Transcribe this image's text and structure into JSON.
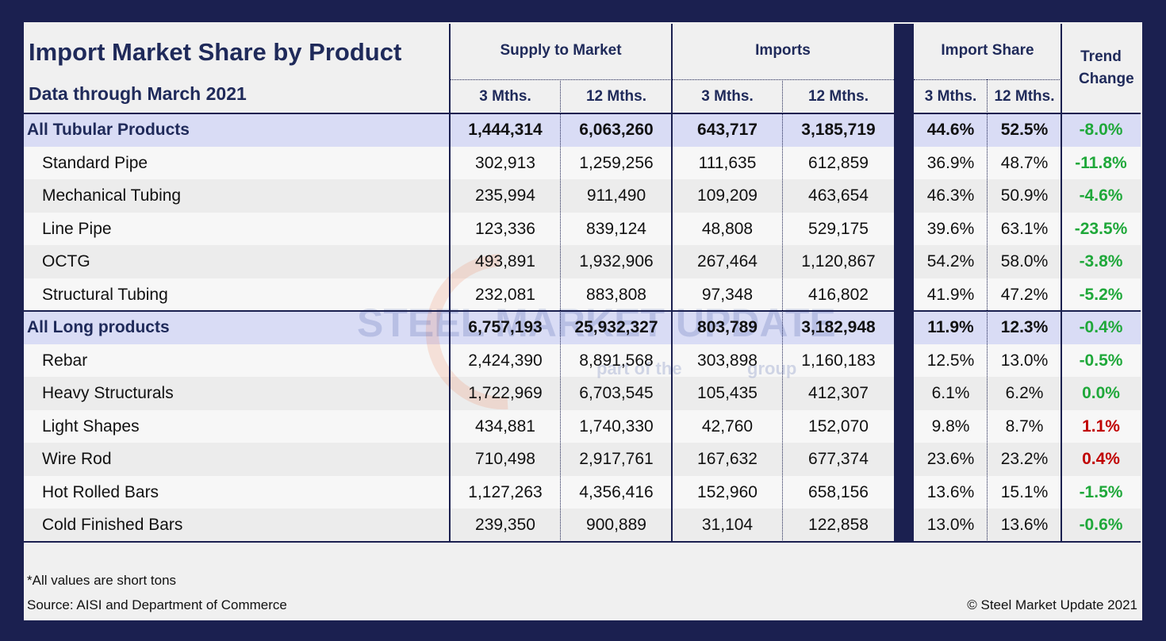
{
  "header": {
    "title": "Import Market Share by Product",
    "subtitle": "Data through March 2021"
  },
  "columns": {
    "groups": [
      "Supply to Market",
      "Imports",
      "Import Share",
      "Trend Change"
    ],
    "sub": [
      "3 Mths.",
      "12 Mths.",
      "3 Mths.",
      "12 Mths.",
      "3 Mths.",
      "12 Mths."
    ]
  },
  "table": {
    "rows": [
      {
        "label": "All Tubular Products",
        "summary": true,
        "trend_color": "#1fa83a",
        "cells": [
          "1,444,314",
          "6,063,260",
          "643,717",
          "3,185,719",
          "44.6%",
          "52.5%",
          "-8.0%"
        ]
      },
      {
        "label": "Standard Pipe",
        "summary": false,
        "trend_color": "#1fa83a",
        "cells": [
          "302,913",
          "1,259,256",
          "111,635",
          "612,859",
          "36.9%",
          "48.7%",
          "-11.8%"
        ]
      },
      {
        "label": "Mechanical Tubing",
        "summary": false,
        "trend_color": "#1fa83a",
        "cells": [
          "235,994",
          "911,490",
          "109,209",
          "463,654",
          "46.3%",
          "50.9%",
          "-4.6%"
        ]
      },
      {
        "label": "Line Pipe",
        "summary": false,
        "trend_color": "#1fa83a",
        "cells": [
          "123,336",
          "839,124",
          "48,808",
          "529,175",
          "39.6%",
          "63.1%",
          "-23.5%"
        ]
      },
      {
        "label": "OCTG",
        "summary": false,
        "trend_color": "#1fa83a",
        "cells": [
          "493,891",
          "1,932,906",
          "267,464",
          "1,120,867",
          "54.2%",
          "58.0%",
          "-3.8%"
        ]
      },
      {
        "label": "Structural Tubing",
        "summary": false,
        "trend_color": "#1fa83a",
        "cells": [
          "232,081",
          "883,808",
          "97,348",
          "416,802",
          "41.9%",
          "47.2%",
          "-5.2%"
        ]
      },
      {
        "label": "All Long products",
        "summary": true,
        "trend_color": "#1fa83a",
        "cells": [
          "6,757,193",
          "25,932,327",
          "803,789",
          "3,182,948",
          "11.9%",
          "12.3%",
          "-0.4%"
        ]
      },
      {
        "label": "Rebar",
        "summary": false,
        "trend_color": "#1fa83a",
        "cells": [
          "2,424,390",
          "8,891,568",
          "303,898",
          "1,160,183",
          "12.5%",
          "13.0%",
          "-0.5%"
        ]
      },
      {
        "label": "Heavy Structurals",
        "summary": false,
        "trend_color": "#1fa83a",
        "cells": [
          "1,722,969",
          "6,703,545",
          "105,435",
          "412,307",
          "6.1%",
          "6.2%",
          "0.0%"
        ]
      },
      {
        "label": "Light Shapes",
        "summary": false,
        "trend_color": "#c00000",
        "cells": [
          "434,881",
          "1,740,330",
          "42,760",
          "152,070",
          "9.8%",
          "8.7%",
          "1.1%"
        ]
      },
      {
        "label": "Wire Rod",
        "summary": false,
        "trend_color": "#c00000",
        "cells": [
          "710,498",
          "2,917,761",
          "167,632",
          "677,374",
          "23.6%",
          "23.2%",
          "0.4%"
        ]
      },
      {
        "label": "Hot Rolled Bars",
        "summary": false,
        "trend_color": "#1fa83a",
        "cells": [
          "1,127,263",
          "4,356,416",
          "152,960",
          "658,156",
          "13.6%",
          "15.1%",
          "-1.5%"
        ]
      },
      {
        "label": "Cold Finished Bars",
        "summary": false,
        "trend_color": "#1fa83a",
        "cells": [
          "239,350",
          "900,889",
          "31,104",
          "122,858",
          "13.0%",
          "13.6%",
          "-0.6%"
        ]
      }
    ]
  },
  "watermark": {
    "brand": "STEEL MARKET UPDATE",
    "tagline": "part of the",
    "tagline_end": "group"
  },
  "footer": {
    "note": "*All values are short tons",
    "source": "Source: AISI and Department of Commerce",
    "copyright": "© Steel Market Update 2021"
  }
}
